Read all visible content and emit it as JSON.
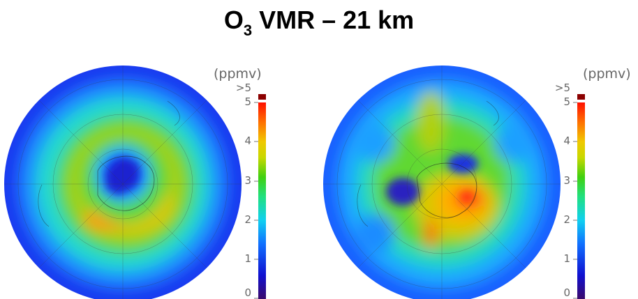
{
  "title": {
    "main": "O",
    "sub": "3",
    "rest": " VMR – 21 km"
  },
  "colorbar": {
    "unit": "(ppmv)",
    "over_label": ">5",
    "ticks": [
      "5",
      "4",
      "3",
      "2",
      "1",
      "0"
    ],
    "over_color": "#8b0000",
    "stops": [
      "#3b0a6b",
      "#1010d0",
      "#1070ff",
      "#10d0f0",
      "#20e080",
      "#40d010",
      "#c8d800",
      "#f0c800",
      "#ff7000",
      "#ff1000"
    ]
  },
  "maps": [
    {
      "name": "left-map"
    },
    {
      "name": "right-map"
    }
  ]
}
